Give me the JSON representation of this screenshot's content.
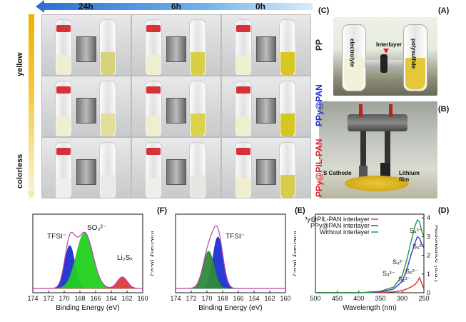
{
  "panels": {
    "A": {
      "label": "(A)",
      "photo_labels": {
        "left": "polysulfide",
        "right": "electrolyte",
        "middle": "Interlayer"
      }
    },
    "B": {
      "label": "(B)",
      "photo_labels": {
        "cathode": "S Cathode",
        "anode": "Lithium film"
      }
    },
    "C": {
      "label": "(C)",
      "columns": [
        "24h",
        "6h",
        "0h"
      ],
      "rows": [
        "PP",
        "PPy@PAN",
        "PPy@PIL-PAN"
      ],
      "color_scale": {
        "top": "yellow",
        "bottom": "colorless"
      },
      "solution_colors": {
        "PP": [
          "#d8d27a",
          "#d9cf46",
          "#d7c722"
        ],
        "PPy@PAN": [
          "#e3de9b",
          "#d9d24a",
          "#d6c624"
        ],
        "PPy@PIL-PAN": [
          "#e9e9e6",
          "#e6e6e2",
          "#d6cd4a"
        ]
      }
    },
    "D": {
      "label": "(D)"
    },
    "E": {
      "label": "(E)",
      "peak_label": "TFSI⁻"
    },
    "F": {
      "label": "(F)",
      "peak_labels": [
        "TFSI⁻",
        "SO₃²⁻",
        "Li₂Sₓ"
      ]
    }
  },
  "chart_data": [
    {
      "type": "line",
      "panel": "D",
      "xlabel": "Wavelength (nm)",
      "ylabel": "Absorbance (a.u.)",
      "xlim": [
        500,
        250
      ],
      "ylim": [
        0,
        4.2
      ],
      "xticks": [
        "500",
        "450",
        "400",
        "350",
        "300",
        "250"
      ],
      "yticks": [
        "0",
        "1",
        "2",
        "3",
        "4"
      ],
      "legend": [
        "PPy@PIL-PAN interlayer",
        "PPy@PAN interlayer",
        "Without interlayer"
      ],
      "colors": [
        "#e0302f",
        "#2b3bd0",
        "#1f9a3a"
      ],
      "series": [
        {
          "name": "PPy@PIL-PAN interlayer",
          "x": [
            500,
            450,
            400,
            350,
            320,
            300,
            290,
            280,
            270,
            265,
            260,
            255,
            250
          ],
          "y": [
            0,
            0,
            0,
            0.02,
            0.05,
            0.12,
            0.2,
            0.3,
            0.45,
            0.6,
            0.8,
            0.5,
            0.2
          ]
        },
        {
          "name": "PPy@PAN interlayer",
          "x": [
            500,
            450,
            400,
            350,
            320,
            300,
            290,
            280,
            270,
            265,
            260,
            255,
            250
          ],
          "y": [
            0,
            0,
            0,
            0.05,
            0.2,
            0.6,
            1.2,
            2.0,
            2.7,
            3.0,
            2.9,
            2.6,
            2.4
          ]
        },
        {
          "name": "Without interlayer",
          "x": [
            500,
            450,
            400,
            350,
            320,
            300,
            290,
            280,
            270,
            265,
            260,
            255,
            250
          ],
          "y": [
            0,
            0,
            0,
            0.08,
            0.3,
            0.9,
            1.7,
            2.7,
            3.6,
            3.9,
            3.8,
            3.3,
            3.0
          ]
        }
      ],
      "annotations": [
        "S₆²⁻",
        "S₄²⁻",
        "S₆²⁻",
        "S₄²⁻",
        "S₆²⁻",
        "S₄²⁻"
      ]
    },
    {
      "type": "line",
      "panel": "E",
      "xlabel": "Binding Energy (eV)",
      "ylabel": "Intensity (a.u.)",
      "xlim": [
        174,
        160
      ],
      "xticks": [
        "174",
        "172",
        "170",
        "168",
        "166",
        "164",
        "162",
        "160"
      ]
    },
    {
      "type": "line",
      "panel": "F",
      "xlabel": "Binding Energy (eV)",
      "ylabel": "Intensity (a.u.)",
      "xlim": [
        174,
        160
      ],
      "xticks": [
        "174",
        "172",
        "170",
        "168",
        "166",
        "164",
        "162",
        "160"
      ]
    }
  ]
}
